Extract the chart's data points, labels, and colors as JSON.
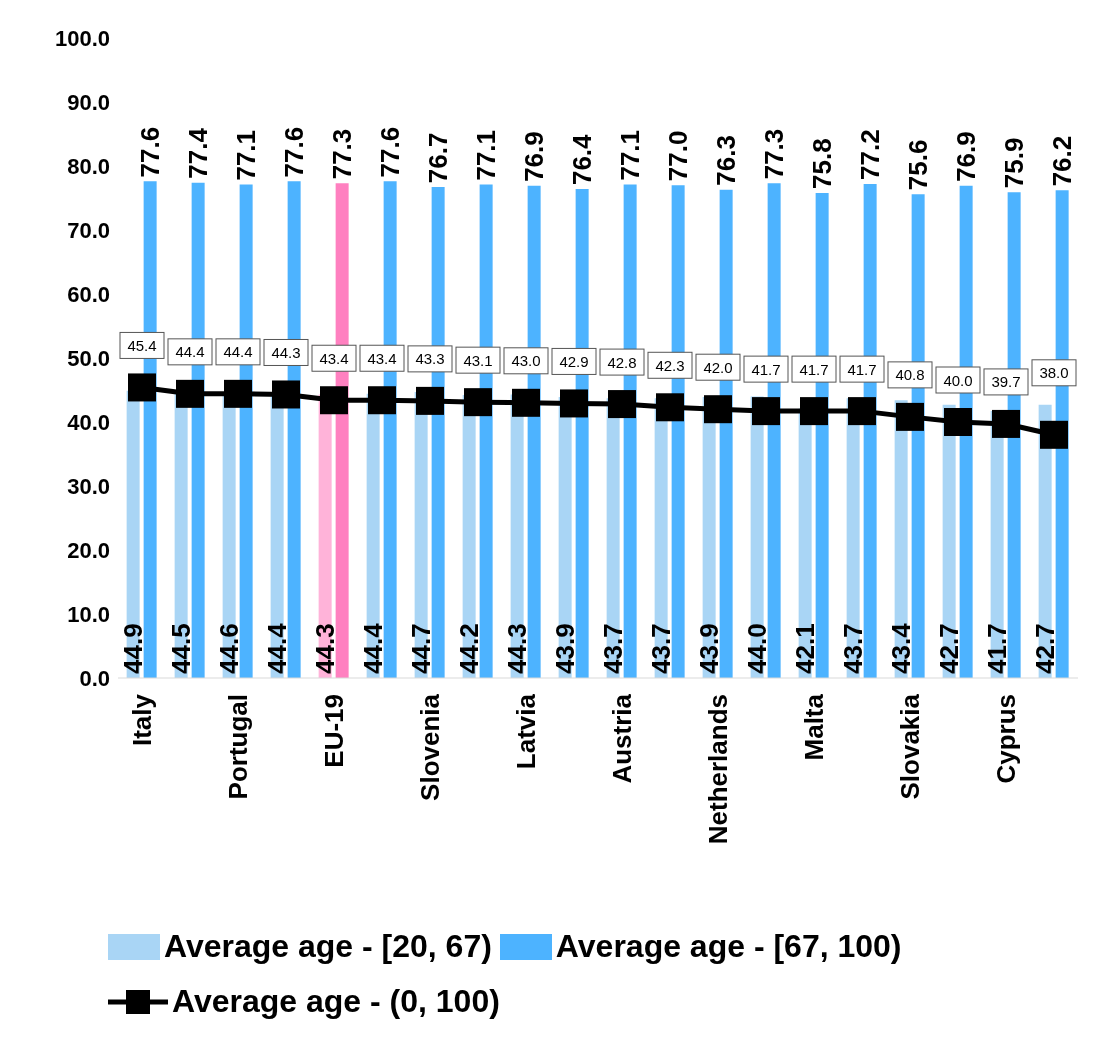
{
  "chart_data": {
    "type": "bar",
    "categories": [
      "Italy",
      null,
      "Portugal",
      null,
      "EU-19",
      null,
      "Slovenia",
      null,
      "Latvia",
      null,
      "Austria",
      null,
      "Netherlands",
      null,
      "Malta",
      null,
      "Slovakia",
      null,
      "Cyprus",
      null
    ],
    "series": [
      {
        "name": "Average age - [20, 67)",
        "value_labels": [
          "44.9",
          "44.5",
          "44.6",
          "44.4",
          "44.3",
          "44.4",
          "44.7",
          "44.2",
          "44.3",
          "43.9",
          "43.7",
          "43.7",
          "43.9",
          "44.0",
          "42.1",
          "43.7",
          "43.4",
          "42.7",
          "41.7",
          "42.7"
        ],
        "color": "#a9d5f5",
        "colors": [
          "#a9d5f5",
          "#a9d5f5",
          "#a9d5f5",
          "#a9d5f5",
          "#ffb3d9",
          "#a9d5f5",
          "#a9d5f5",
          "#a9d5f5",
          "#a9d5f5",
          "#a9d5f5",
          "#a9d5f5",
          "#a9d5f5",
          "#a9d5f5",
          "#a9d5f5",
          "#a9d5f5",
          "#a9d5f5",
          "#a9d5f5",
          "#a9d5f5",
          "#a9d5f5",
          "#a9d5f5"
        ],
        "values": [
          44.9,
          44.5,
          44.6,
          44.4,
          44.3,
          44.4,
          44.7,
          44.2,
          44.3,
          43.9,
          43.7,
          43.7,
          43.9,
          44.0,
          42.1,
          43.7,
          43.4,
          42.7,
          41.7,
          42.7
        ]
      },
      {
        "name": "Average age - [67, 100)",
        "value_labels": [
          "77.6",
          "77.4",
          "77.1",
          "77.6",
          "77.3",
          "77.6",
          "76.7",
          "77.1",
          "76.9",
          "76.4",
          "77.1",
          "77.0",
          "76.3",
          "77.3",
          "75.8",
          "77.2",
          "75.6",
          "76.9",
          "75.9",
          "76.2"
        ],
        "color": "#4db3ff",
        "colors": [
          "#4db3ff",
          "#4db3ff",
          "#4db3ff",
          "#4db3ff",
          "#ff80c0",
          "#4db3ff",
          "#4db3ff",
          "#4db3ff",
          "#4db3ff",
          "#4db3ff",
          "#4db3ff",
          "#4db3ff",
          "#4db3ff",
          "#4db3ff",
          "#4db3ff",
          "#4db3ff",
          "#4db3ff",
          "#4db3ff",
          "#4db3ff",
          "#4db3ff"
        ],
        "values": [
          77.6,
          77.4,
          77.1,
          77.6,
          77.3,
          77.6,
          76.7,
          77.1,
          76.9,
          76.4,
          77.1,
          77.0,
          76.3,
          77.3,
          75.8,
          77.2,
          75.6,
          76.9,
          75.9,
          76.2
        ]
      },
      {
        "name": "Average age - (0, 100)",
        "type": "line",
        "color": "#000000",
        "marker": "square",
        "value_labels": [
          "45.4",
          "44.4",
          "44.4",
          "44.3",
          "43.4",
          "43.4",
          "43.3",
          "43.1",
          "43.0",
          "42.9",
          "42.8",
          "42.3",
          "42.0",
          "41.7",
          "41.7",
          "41.7",
          "40.8",
          "40.0",
          "39.7",
          "38.0"
        ],
        "values": [
          45.4,
          44.4,
          44.4,
          44.3,
          43.4,
          43.4,
          43.3,
          43.1,
          43.0,
          42.9,
          42.8,
          42.3,
          42.0,
          41.7,
          41.7,
          41.7,
          40.8,
          40.0,
          39.7,
          38.0
        ]
      }
    ],
    "ylim": [
      0,
      100
    ],
    "yticks": [
      {
        "value": 0,
        "label": "0.0"
      },
      {
        "value": 10,
        "label": "10.0"
      },
      {
        "value": 20,
        "label": "20.0"
      },
      {
        "value": 30,
        "label": "30.0"
      },
      {
        "value": 40,
        "label": "40.0"
      },
      {
        "value": 50,
        "label": "50.0"
      },
      {
        "value": 60,
        "label": "60.0"
      },
      {
        "value": 70,
        "label": "70.0"
      },
      {
        "value": 80,
        "label": "80.0"
      },
      {
        "value": 90,
        "label": "90.0"
      },
      {
        "value": 100,
        "label": "100.0"
      }
    ],
    "legend": "bottom"
  }
}
